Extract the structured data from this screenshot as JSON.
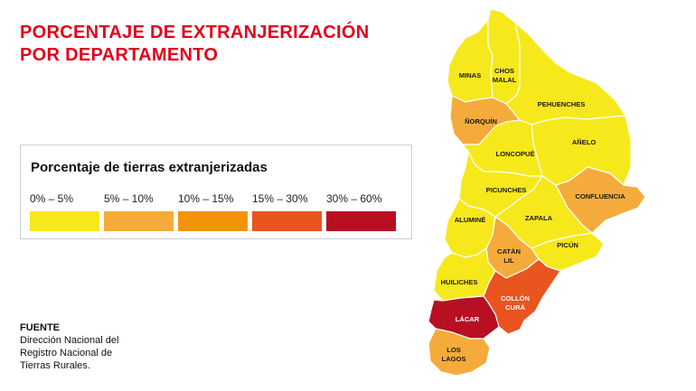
{
  "title": {
    "line1": "PORCENTAJE DE  EXTRANJERIZACIÓN",
    "line2": "POR DEPARTAMENTO"
  },
  "legend": {
    "title": "Porcentaje de tierras extranjerizadas",
    "items": [
      {
        "label": "0% – 5%",
        "color": "#f7e81b"
      },
      {
        "label": "5% – 10%",
        "color": "#f5ab3b"
      },
      {
        "label": "10% – 15%",
        "color": "#f2940a"
      },
      {
        "label": "15% – 30%",
        "color": "#e9541f"
      },
      {
        "label": "30% – 60%",
        "color": "#b80f23"
      }
    ]
  },
  "map": {
    "departments": [
      {
        "key": "minas",
        "label": "MINAS",
        "category": "0% – 5%",
        "color": "#f7e81b"
      },
      {
        "key": "chosmalal",
        "label": "CHOS MALAL",
        "line1": "CHOS",
        "line2": "MALAL",
        "category": "0% – 5%",
        "color": "#f7e81b"
      },
      {
        "key": "pehuenches",
        "label": "PEHUENCHES",
        "category": "0% – 5%",
        "color": "#f7e81b"
      },
      {
        "key": "norquin",
        "label": "ÑORQUÍN",
        "category": "5% – 10%",
        "color": "#f5ab3b"
      },
      {
        "key": "anelo",
        "label": "AÑELO",
        "category": "0% – 5%",
        "color": "#f7e81b"
      },
      {
        "key": "loncopue",
        "label": "LONCOPUÉ",
        "category": "0% – 5%",
        "color": "#f7e81b"
      },
      {
        "key": "picunches",
        "label": "PICUNCHES",
        "category": "0% – 5%",
        "color": "#f7e81b"
      },
      {
        "key": "confluencia",
        "label": "CONFLUENCIA",
        "category": "5% – 10%",
        "color": "#f5ab3b"
      },
      {
        "key": "zapala",
        "label": "ZAPALA",
        "category": "0% – 5%",
        "color": "#f7e81b"
      },
      {
        "key": "alumine",
        "label": "ALUMINÉ",
        "category": "0% – 5%",
        "color": "#f7e81b"
      },
      {
        "key": "catanlil",
        "label": "CATÁN LIL",
        "line1": "CATÁN",
        "line2": "LIL",
        "category": "5% – 10%",
        "color": "#f5ab3b"
      },
      {
        "key": "picun",
        "label": "PICÚN",
        "category": "0% – 5%",
        "color": "#f7e81b"
      },
      {
        "key": "huiliches",
        "label": "HUILICHES",
        "category": "0% – 5%",
        "color": "#f7e81b"
      },
      {
        "key": "colloncura",
        "label": "COLLÓN CURÁ",
        "line1": "COLLÓN",
        "line2": "CURÁ",
        "category": "15% – 30%",
        "color": "#e9541f"
      },
      {
        "key": "lacar",
        "label": "LÁCAR",
        "category": "30% – 60%",
        "color": "#b80f23"
      },
      {
        "key": "loslagos",
        "label": "LOS LAGOS",
        "line1": "LOS",
        "line2": "LAGOS",
        "category": "5% – 10%",
        "color": "#f5ab3b"
      }
    ]
  },
  "source": {
    "heading": "FUENTE",
    "lines": [
      "Dirección Nacional del",
      "Registro Nacional de",
      "Tierras Rurales."
    ]
  }
}
